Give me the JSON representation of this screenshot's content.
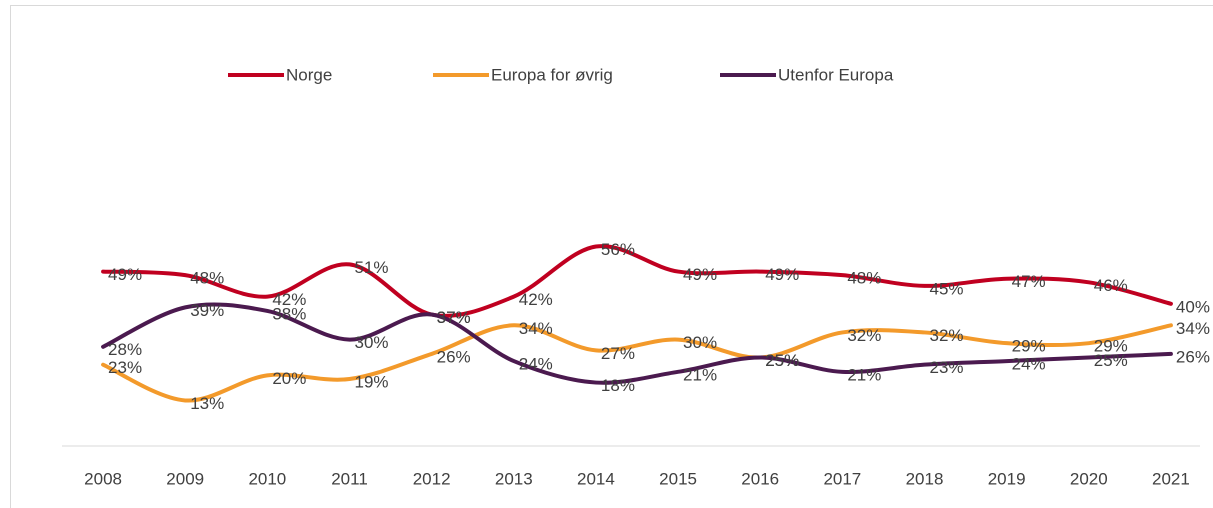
{
  "chart_data": {
    "type": "line",
    "categories": [
      "2008",
      "2009",
      "2010",
      "2011",
      "2012",
      "2013",
      "2014",
      "2015",
      "2016",
      "2017",
      "2018",
      "2019",
      "2020",
      "2021"
    ],
    "series": [
      {
        "name": "Norge",
        "color": "#c00020",
        "values": [
          49,
          48,
          42,
          51,
          37,
          42,
          56,
          49,
          49,
          48,
          45,
          47,
          46,
          40
        ],
        "value_labels": [
          "49%",
          "48%",
          "42%",
          "51%",
          "37%",
          "42%",
          "56%",
          "49%",
          "49%",
          "48%",
          "45%",
          "47%",
          "46%",
          "40%"
        ]
      },
      {
        "name": "Europa for øvrig",
        "color": "#f39a2b",
        "values": [
          23,
          13,
          20,
          19,
          26,
          34,
          27,
          30,
          25,
          32,
          32,
          29,
          29,
          34
        ],
        "value_labels": [
          "23%",
          "13%",
          "20%",
          "19%",
          "26%",
          "34%",
          "27%",
          "30%",
          "25%",
          "32%",
          "32%",
          "29%",
          "29%",
          "34%"
        ]
      },
      {
        "name": "Utenfor Europa",
        "color": "#4b1a4f",
        "values": [
          28,
          39,
          38,
          30,
          37,
          24,
          18,
          21,
          25,
          21,
          23,
          24,
          25,
          26
        ],
        "value_labels": [
          "28%",
          "39%",
          "38%",
          "30%",
          "37%",
          "24%",
          "18%",
          "21%",
          "25%",
          "21%",
          "23%",
          "24%",
          "25%",
          "26%"
        ]
      }
    ],
    "ylim": [
      0,
      100
    ],
    "legend": "top",
    "smooth": true
  }
}
